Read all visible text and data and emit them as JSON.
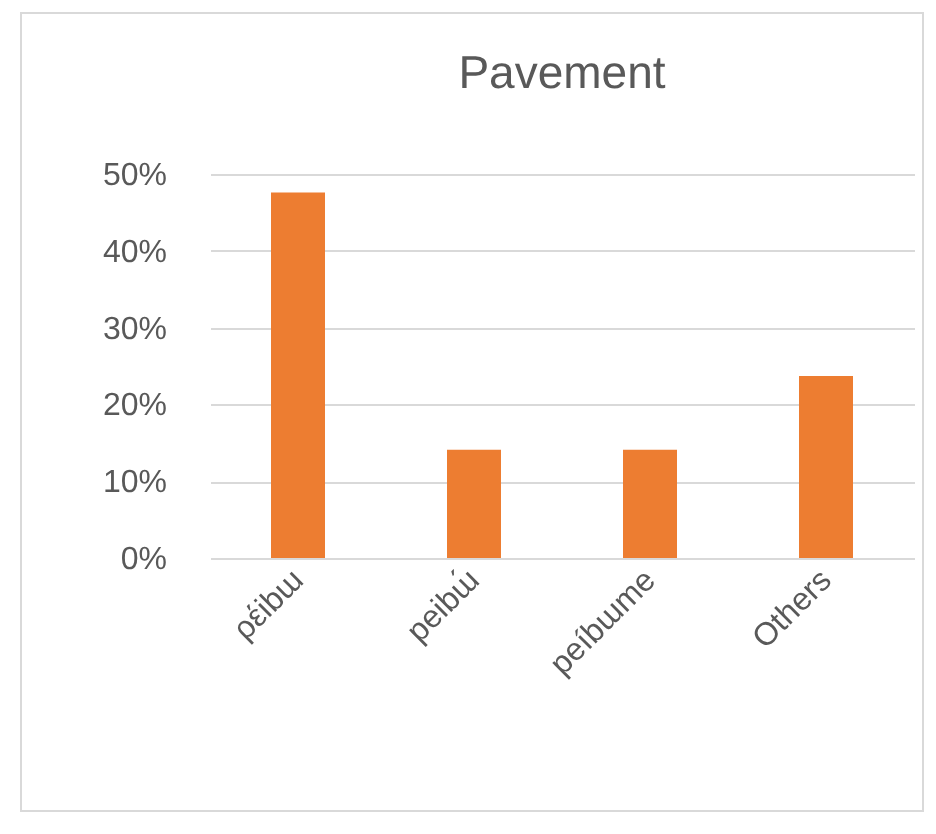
{
  "chart_data": {
    "type": "bar",
    "title": "Pavement",
    "categories": [
      "ρέibɯ",
      "peibɯ́",
      "peíbɯme",
      "Others"
    ],
    "values": [
      47.6,
      14.1,
      14.1,
      23.7
    ],
    "color": "#ed7d31",
    "ylim": [
      0,
      50
    ],
    "yticks": [
      {
        "value": 0,
        "label": "0%"
      },
      {
        "value": 10,
        "label": "10%"
      },
      {
        "value": 20,
        "label": "20%"
      },
      {
        "value": 30,
        "label": "30%"
      },
      {
        "value": 40,
        "label": "40%"
      },
      {
        "value": 50,
        "label": "50%"
      }
    ],
    "grid": true
  }
}
